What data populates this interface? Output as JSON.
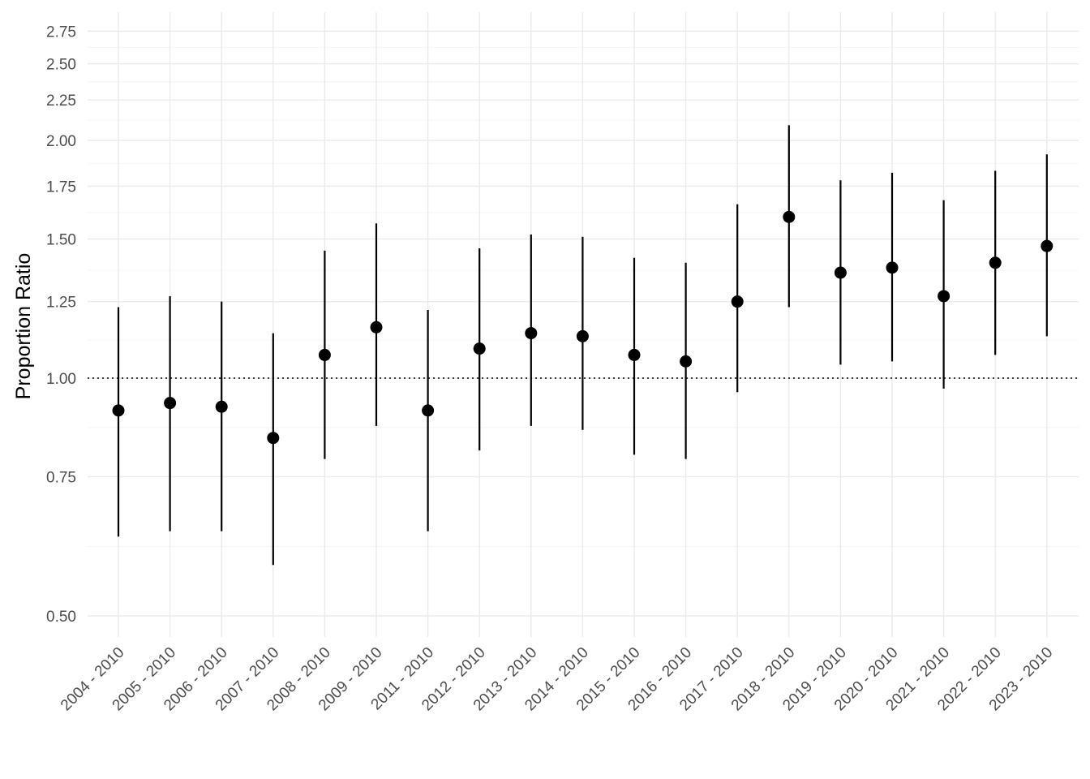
{
  "chart_data": {
    "type": "scatter",
    "subtype": "point-range",
    "title": "",
    "xlabel": "",
    "ylabel": "Proportion Ratio",
    "y_scale": "log",
    "ylim": [
      0.465,
      2.9
    ],
    "y_ticks": [
      {
        "value": 0.5,
        "label": "0.50"
      },
      {
        "value": 0.75,
        "label": "0.75"
      },
      {
        "value": 1.0,
        "label": "1.00"
      },
      {
        "value": 1.25,
        "label": "1.25"
      },
      {
        "value": 1.5,
        "label": "1.50"
      },
      {
        "value": 1.75,
        "label": "1.75"
      },
      {
        "value": 2.0,
        "label": "2.00"
      },
      {
        "value": 2.25,
        "label": "2.25"
      },
      {
        "value": 2.5,
        "label": "2.50"
      },
      {
        "value": 2.75,
        "label": "2.75"
      }
    ],
    "reference_line": {
      "y": 1.0,
      "style": "dotted"
    },
    "grid": true,
    "categories": [
      "2004 - 2010",
      "2005 - 2010",
      "2006 - 2010",
      "2007 - 2010",
      "2008 - 2010",
      "2009 - 2010",
      "2011 - 2010",
      "2012 - 2010",
      "2013 - 2010",
      "2014 - 2010",
      "2015 - 2010",
      "2016 - 2010",
      "2017 - 2010",
      "2018 - 2010",
      "2019 - 2010",
      "2020 - 2010",
      "2021 - 2010",
      "2022 - 2010",
      "2023 - 2010"
    ],
    "estimates": [
      0.91,
      0.93,
      0.92,
      0.84,
      1.07,
      1.16,
      0.91,
      1.09,
      1.14,
      1.13,
      1.07,
      1.05,
      1.25,
      1.6,
      1.36,
      1.38,
      1.27,
      1.4,
      1.47
    ],
    "lower": [
      0.63,
      0.64,
      0.64,
      0.58,
      0.79,
      0.87,
      0.64,
      0.81,
      0.87,
      0.86,
      0.8,
      0.79,
      0.96,
      1.23,
      1.04,
      1.05,
      0.97,
      1.07,
      1.13
    ],
    "upper": [
      1.23,
      1.27,
      1.25,
      1.14,
      1.45,
      1.57,
      1.22,
      1.46,
      1.52,
      1.51,
      1.42,
      1.4,
      1.66,
      2.09,
      1.78,
      1.82,
      1.68,
      1.83,
      1.92
    ],
    "colors": {
      "point": "#000000",
      "errorbar": "#000000",
      "grid": "#ebebeb",
      "reference": "#000000"
    }
  }
}
